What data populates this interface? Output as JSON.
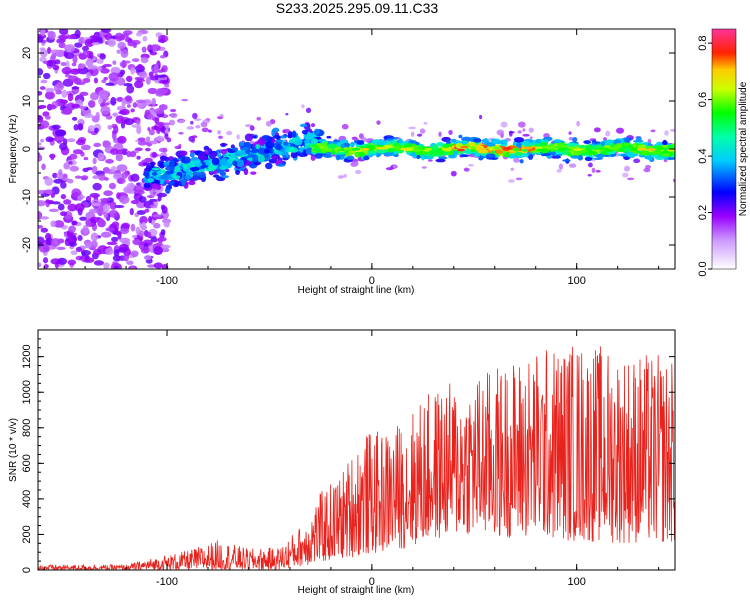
{
  "title": "S233.2025.295.09.11.C33",
  "chart_data": [
    {
      "type": "heatmap",
      "name": "spectrogram",
      "xlabel": "Height of straight line (km)",
      "ylabel": "Frequency (Hz)",
      "xlim": [
        -163,
        148
      ],
      "ylim": [
        -25,
        25
      ],
      "xticks": [
        -100,
        0,
        100
      ],
      "xticklabels": [
        "-100",
        "0",
        "100"
      ],
      "yticks": [
        -20,
        -10,
        0,
        10,
        20
      ],
      "yticklabels": [
        "-20",
        "-10",
        "0",
        "10",
        "20"
      ],
      "colorbar": {
        "label": "Normalized spectral amplitude",
        "range": [
          0.0,
          0.85
        ],
        "ticks": [
          0.0,
          0.2,
          0.4,
          0.6,
          0.8
        ],
        "ticklabels": [
          "0.0",
          "0.2",
          "0.4",
          "0.6",
          "0.8"
        ],
        "colors": [
          "#ffffff",
          "#9900ff",
          "#0000ff",
          "#00ffff",
          "#00ff00",
          "#ffff00",
          "#ff0000",
          "#ff3399"
        ]
      },
      "features": {
        "noise_region_x": [
          -163,
          -110
        ],
        "signal_start_x": -110,
        "line_frequency_hz": 0,
        "line_start_x": -20,
        "peak_amplitude_region_x": [
          40,
          80
        ],
        "tilted_segment": {
          "x": [
            -110,
            -25
          ],
          "freq_hz": [
            -6,
            2
          ]
        }
      }
    },
    {
      "type": "line",
      "name": "snr",
      "xlabel": "Height of straight line (km)",
      "ylabel": "SNR (10 * v/v)",
      "xlim": [
        -163,
        148
      ],
      "ylim": [
        0,
        1350
      ],
      "xticks": [
        -100,
        0,
        100
      ],
      "xticklabels": [
        "-100",
        "0",
        "100"
      ],
      "yticks": [
        0,
        200,
        400,
        600,
        800,
        1000,
        1200
      ],
      "yticklabels": [
        "0",
        "200",
        "400",
        "600",
        "800",
        "1000",
        "1200"
      ],
      "series": [
        {
          "name": "SNR",
          "color": "#e8221c",
          "envelope": {
            "x": [
              -163,
              -120,
              -110,
              -90,
              -75,
              -60,
              -45,
              -35,
              -25,
              -15,
              -5,
              5,
              15,
              25,
              35,
              45,
              60,
              80,
              100,
              120,
              148
            ],
            "max": [
              30,
              30,
              60,
              110,
              170,
              120,
              130,
              250,
              440,
              550,
              780,
              780,
              850,
              980,
              1050,
              1080,
              1150,
              1250,
              1300,
              1250,
              1200
            ],
            "min": [
              0,
              0,
              0,
              0,
              0,
              0,
              0,
              20,
              40,
              60,
              80,
              100,
              120,
              150,
              180,
              200,
              180,
              180,
              160,
              150,
              150
            ]
          }
        }
      ]
    }
  ]
}
